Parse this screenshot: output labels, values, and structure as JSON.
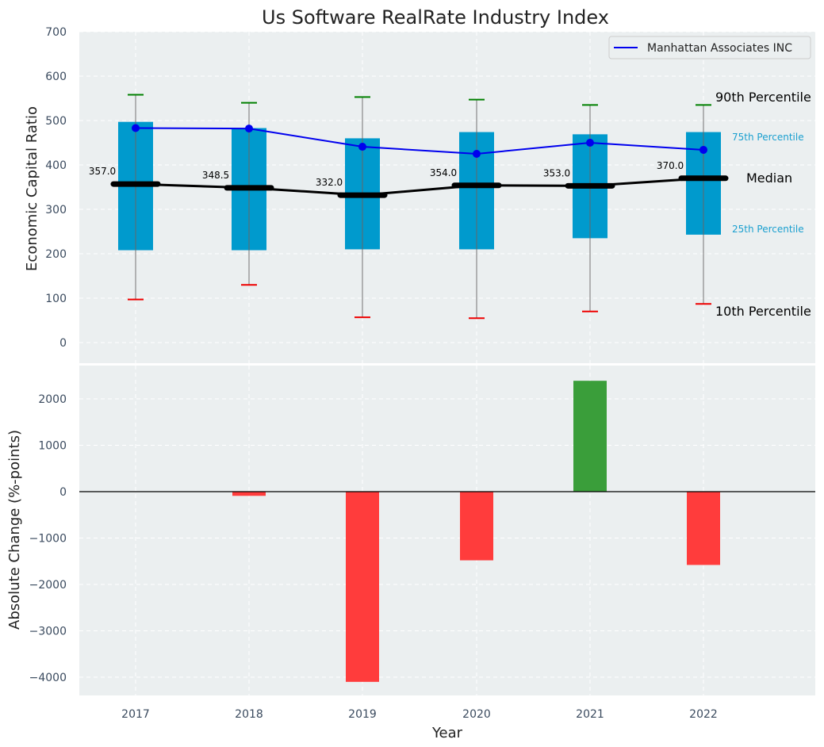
{
  "chart_data": [
    {
      "type": "box",
      "title": "Us Software RealRate Industry Index",
      "ylabel": "Economic Capital Ratio",
      "ylim": [
        -50,
        700
      ],
      "yticks": [
        0,
        100,
        200,
        300,
        400,
        500,
        600,
        700
      ],
      "categories": [
        "2017",
        "2018",
        "2019",
        "2020",
        "2021",
        "2022"
      ],
      "p10": [
        97,
        130,
        57,
        55,
        70,
        87
      ],
      "p25": [
        208,
        208,
        210,
        210,
        235,
        243
      ],
      "median": [
        357.0,
        348.5,
        332.0,
        354.0,
        353.0,
        370.0
      ],
      "median_labels": [
        "357.0",
        "348.5",
        "332.0",
        "354.0",
        "353.0",
        "370.0"
      ],
      "p75": [
        497,
        483,
        460,
        474,
        469,
        474
      ],
      "p90": [
        558,
        540,
        553,
        547,
        535,
        535
      ],
      "company": {
        "name": "Manhattan Associates INC",
        "values": [
          483,
          482,
          441,
          425,
          450,
          434
        ]
      },
      "annotations": {
        "p90": "90th Percentile",
        "p75": "75th Percentile",
        "median": "Median",
        "p25": "25th Percentile",
        "p10": "10th Percentile"
      },
      "colors": {
        "box": "#009acd",
        "company": "#0000ee",
        "median": "#000000",
        "p90_cap": "#008000",
        "p10_cap": "#ee0000",
        "background": "#ebeff0"
      }
    },
    {
      "type": "bar",
      "ylabel": "Absolute Change (%-points)",
      "xlabel": "Year",
      "ylim": [
        -4400,
        2400
      ],
      "yticks": [
        -4000,
        -3000,
        -2000,
        -1000,
        0,
        1000,
        2000
      ],
      "ytick_labels": [
        "−4000",
        "−3000",
        "−2000",
        "−1000",
        "0",
        "1000",
        "2000"
      ],
      "categories": [
        "2017",
        "2018",
        "2019",
        "2020",
        "2021",
        "2022"
      ],
      "values": [
        0,
        -90,
        -4100,
        -1480,
        2390,
        -1580
      ],
      "colors": {
        "positive": "#3a9e3a",
        "negative": "#ff3c3c"
      }
    }
  ]
}
